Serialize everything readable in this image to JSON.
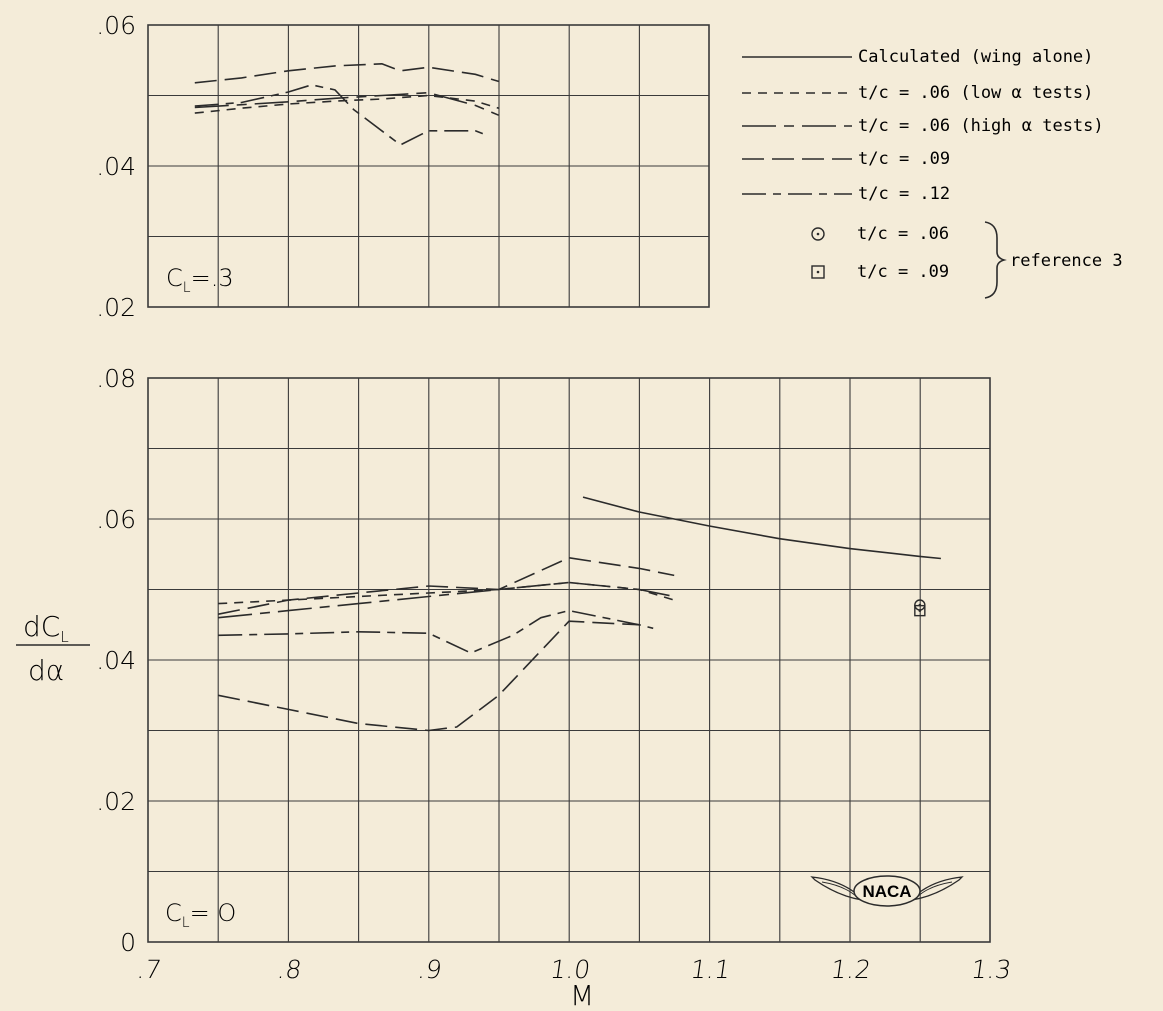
{
  "chart_data": [
    {
      "type": "line",
      "panel_label": "C_L = .3",
      "xlim": [
        0.7,
        1.3
      ],
      "ylim": [
        0.02,
        0.06
      ],
      "y_ticks": [
        ".02",
        ".04",
        ".06"
      ],
      "series": [
        {
          "name": "t/c = .06 (low α tests)",
          "style": "dash",
          "x": [
            0.75,
            0.8,
            0.85,
            0.9,
            0.95,
            1.0,
            1.05,
            1.075
          ],
          "y": [
            0.0475,
            0.0482,
            0.0488,
            0.0492,
            0.0495,
            0.05,
            0.0492,
            0.0482
          ]
        },
        {
          "name": "t/c = .06 (high α tests)",
          "style": "long-short",
          "x": [
            0.75,
            0.8,
            0.85,
            0.9,
            0.95,
            1.0,
            1.05,
            1.075
          ],
          "y": [
            0.0483,
            0.0487,
            0.0491,
            0.0496,
            0.05,
            0.0504,
            0.0486,
            0.0472
          ]
        },
        {
          "name": "t/c = .09",
          "style": "long-dash",
          "x": [
            0.75,
            0.8,
            0.85,
            0.9,
            0.95,
            0.97,
            1.0,
            1.05,
            1.075
          ],
          "y": [
            0.0518,
            0.0525,
            0.0535,
            0.0542,
            0.0545,
            0.0535,
            0.054,
            0.053,
            0.052
          ]
        },
        {
          "name": "t/c = .12",
          "style": "long-dash-dash",
          "x": [
            0.75,
            0.8,
            0.85,
            0.875,
            0.9,
            0.92,
            0.95,
            0.97,
            1.0,
            1.05,
            1.06
          ],
          "y": [
            0.0485,
            0.049,
            0.0505,
            0.0515,
            0.0508,
            0.048,
            0.045,
            0.043,
            0.045,
            0.045,
            0.0445
          ]
        }
      ]
    },
    {
      "type": "line",
      "panel_label": "C_L = 0",
      "xlim": [
        0.7,
        1.3
      ],
      "ylim": [
        0,
        0.08
      ],
      "x_ticks": [
        ".7",
        ".8",
        ".9",
        "1.0",
        "1.1",
        "1.2",
        "1.3"
      ],
      "y_ticks": [
        "0",
        ".02",
        ".04",
        ".06",
        ".08"
      ],
      "xlabel": "M",
      "ylabel": "dC_L / dα",
      "series": [
        {
          "name": "Calculated (wing alone)",
          "style": "solid",
          "x": [
            1.01,
            1.05,
            1.1,
            1.15,
            1.2,
            1.25,
            1.265
          ],
          "y": [
            0.0631,
            0.061,
            0.059,
            0.0572,
            0.0558,
            0.0547,
            0.0544
          ]
        },
        {
          "name": "t/c = .06 (low α tests)",
          "style": "dash",
          "x": [
            0.75,
            0.8,
            0.85,
            0.9,
            0.95,
            1.0,
            1.05,
            1.075
          ],
          "y": [
            0.048,
            0.0485,
            0.049,
            0.0495,
            0.05,
            0.051,
            0.05,
            0.0485
          ]
        },
        {
          "name": "t/c = .06 (high α tests)",
          "style": "long-short",
          "x": [
            0.75,
            0.8,
            0.85,
            0.9,
            0.95,
            1.0,
            1.05,
            1.075
          ],
          "y": [
            0.046,
            0.047,
            0.048,
            0.049,
            0.05,
            0.051,
            0.05,
            0.049
          ]
        },
        {
          "name": "t/c = .09",
          "style": "long-dash",
          "x": [
            0.75,
            0.8,
            0.85,
            0.9,
            0.95,
            1.0,
            1.05,
            1.075
          ],
          "y": [
            0.0465,
            0.0485,
            0.0495,
            0.0505,
            0.05,
            0.0545,
            0.053,
            0.052
          ]
        },
        {
          "name": "t/c = .12",
          "style": "long-dash-dash",
          "x": [
            0.75,
            0.8,
            0.85,
            0.9,
            0.93,
            0.96,
            0.98,
            1.0,
            1.05,
            1.06
          ],
          "y": [
            0.0435,
            0.0437,
            0.044,
            0.0438,
            0.041,
            0.0435,
            0.046,
            0.047,
            0.045,
            0.0445
          ]
        },
        {
          "name": "",
          "style": "long-dash",
          "x": [
            0.75,
            0.8,
            0.85,
            0.9,
            0.92,
            0.95,
            1.0,
            1.05
          ],
          "y": [
            0.035,
            0.033,
            0.031,
            0.03,
            0.0305,
            0.035,
            0.0455,
            0.045
          ]
        }
      ],
      "markers": [
        {
          "label": "t/c = .06",
          "symbol": "circle-dot",
          "x": 1.25,
          "y": 0.0478
        },
        {
          "label": "t/c = .09",
          "symbol": "square-dot",
          "x": 1.25,
          "y": 0.047
        }
      ]
    }
  ],
  "legend": {
    "entries": [
      {
        "label": "Calculated (wing alone)",
        "style": "solid"
      },
      {
        "label": "t/c = .06 (low  α  tests)",
        "style": "dash"
      },
      {
        "label": "t/c = .06 (high  α  tests)",
        "style": "long-short"
      },
      {
        "label": "t/c = .09",
        "style": "long-dash"
      },
      {
        "label": "t/c = .12",
        "style": "long-dash-dash"
      },
      {
        "label": "t/c = .06",
        "style": "circle-dot"
      },
      {
        "label": "t/c = .09",
        "style": "square-dot"
      }
    ],
    "group_label": "reference 3"
  },
  "labels": {
    "top_panel_cl": "C",
    "top_panel_cl_sub": "L",
    "top_panel_cl_val": "=.3",
    "bottom_panel_cl": "C",
    "bottom_panel_cl_sub": "L",
    "bottom_panel_cl_val": "= O",
    "ylabel_num": "dC",
    "ylabel_num_sub": "L",
    "ylabel_den": "dα",
    "xlabel": "M",
    "logo": "NACA"
  },
  "colors": {
    "paper": "#f4ecd9",
    "ink": "#2b2b2b",
    "grid": "#3a3a3a"
  }
}
